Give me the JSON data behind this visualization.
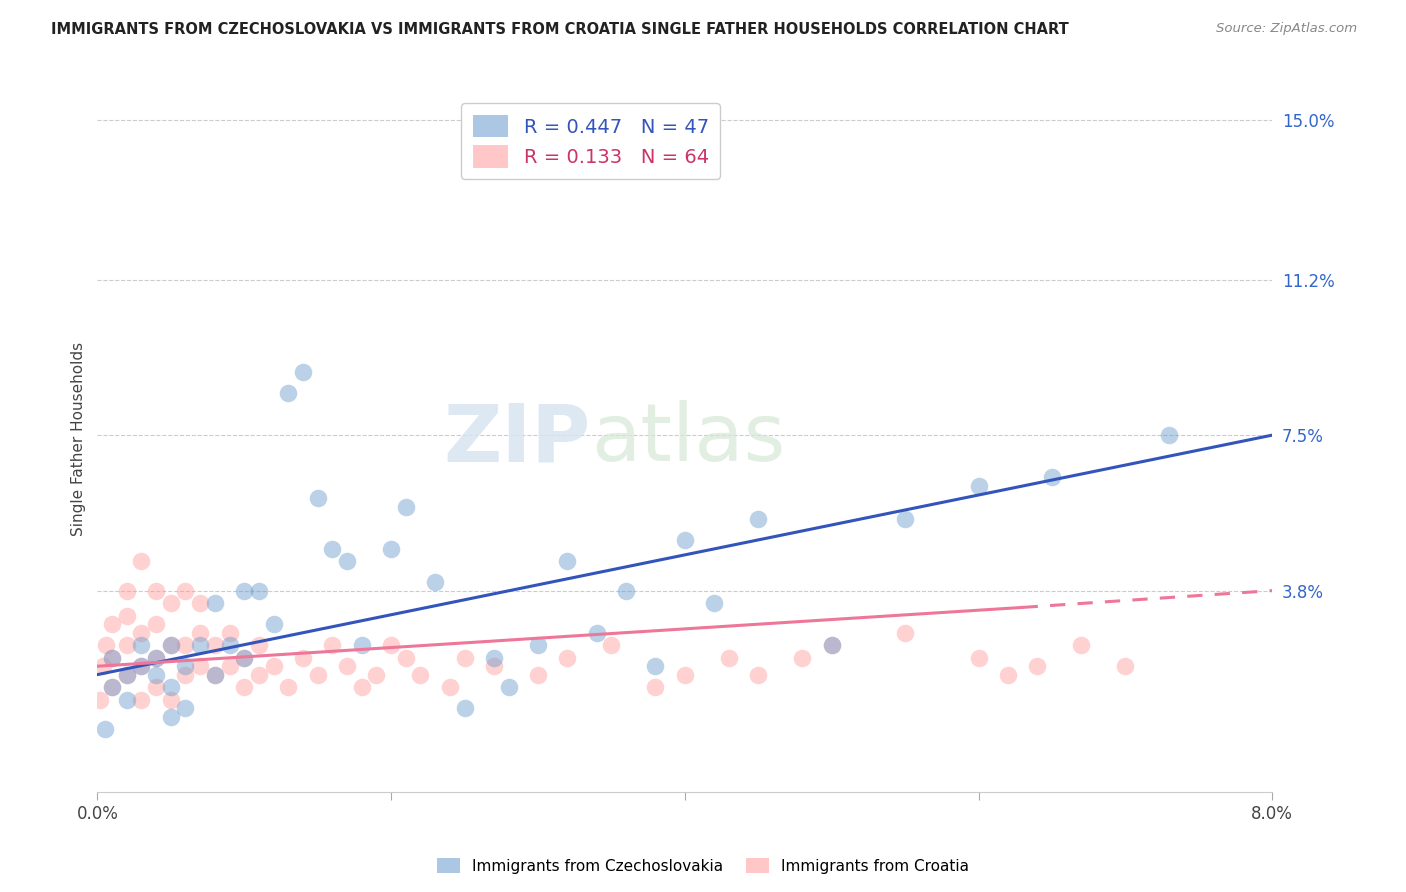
{
  "title": "IMMIGRANTS FROM CZECHOSLOVAKIA VS IMMIGRANTS FROM CROATIA SINGLE FATHER HOUSEHOLDS CORRELATION CHART",
  "source": "Source: ZipAtlas.com",
  "ylabel": "Single Father Households",
  "xlim": [
    0.0,
    0.08
  ],
  "ylim": [
    -0.01,
    0.158
  ],
  "yticks_right": [
    0.038,
    0.075,
    0.112,
    0.15
  ],
  "yticklabels_right": [
    "3.8%",
    "7.5%",
    "11.2%",
    "15.0%"
  ],
  "r_czech": 0.447,
  "n_czech": 47,
  "r_croatia": 0.133,
  "n_croatia": 64,
  "color_czech": "#6699CC",
  "color_croatia": "#FF9999",
  "trend_czech_color": "#3355BB",
  "trend_croatia_color": "#EE7799",
  "legend_label_czech": "Immigrants from Czechoslovakia",
  "legend_label_croatia": "Immigrants from Croatia",
  "czech_x": [
    0.0005,
    0.001,
    0.001,
    0.002,
    0.002,
    0.003,
    0.003,
    0.004,
    0.004,
    0.005,
    0.005,
    0.005,
    0.006,
    0.006,
    0.007,
    0.008,
    0.008,
    0.009,
    0.01,
    0.01,
    0.011,
    0.012,
    0.013,
    0.014,
    0.015,
    0.016,
    0.017,
    0.018,
    0.02,
    0.021,
    0.023,
    0.025,
    0.027,
    0.028,
    0.03,
    0.032,
    0.034,
    0.036,
    0.038,
    0.04,
    0.042,
    0.045,
    0.05,
    0.055,
    0.06,
    0.065,
    0.073
  ],
  "czech_y": [
    0.005,
    0.015,
    0.022,
    0.018,
    0.012,
    0.02,
    0.025,
    0.022,
    0.018,
    0.008,
    0.015,
    0.025,
    0.01,
    0.02,
    0.025,
    0.018,
    0.035,
    0.025,
    0.022,
    0.038,
    0.038,
    0.03,
    0.085,
    0.09,
    0.06,
    0.048,
    0.045,
    0.025,
    0.048,
    0.058,
    0.04,
    0.01,
    0.022,
    0.015,
    0.025,
    0.045,
    0.028,
    0.038,
    0.02,
    0.05,
    0.035,
    0.055,
    0.025,
    0.055,
    0.063,
    0.065,
    0.075
  ],
  "croatia_x": [
    0.0002,
    0.0004,
    0.0006,
    0.001,
    0.001,
    0.001,
    0.002,
    0.002,
    0.002,
    0.002,
    0.003,
    0.003,
    0.003,
    0.003,
    0.004,
    0.004,
    0.004,
    0.004,
    0.005,
    0.005,
    0.005,
    0.006,
    0.006,
    0.006,
    0.007,
    0.007,
    0.007,
    0.008,
    0.008,
    0.009,
    0.009,
    0.01,
    0.01,
    0.011,
    0.011,
    0.012,
    0.013,
    0.014,
    0.015,
    0.016,
    0.017,
    0.018,
    0.019,
    0.02,
    0.021,
    0.022,
    0.024,
    0.025,
    0.027,
    0.03,
    0.032,
    0.035,
    0.038,
    0.04,
    0.043,
    0.045,
    0.048,
    0.05,
    0.055,
    0.06,
    0.062,
    0.064,
    0.067,
    0.07
  ],
  "croatia_y": [
    0.012,
    0.02,
    0.025,
    0.015,
    0.022,
    0.03,
    0.018,
    0.025,
    0.032,
    0.038,
    0.012,
    0.02,
    0.028,
    0.045,
    0.015,
    0.022,
    0.03,
    0.038,
    0.012,
    0.025,
    0.035,
    0.018,
    0.025,
    0.038,
    0.02,
    0.028,
    0.035,
    0.018,
    0.025,
    0.02,
    0.028,
    0.015,
    0.022,
    0.018,
    0.025,
    0.02,
    0.015,
    0.022,
    0.018,
    0.025,
    0.02,
    0.015,
    0.018,
    0.025,
    0.022,
    0.018,
    0.015,
    0.022,
    0.02,
    0.018,
    0.022,
    0.025,
    0.015,
    0.018,
    0.022,
    0.018,
    0.022,
    0.025,
    0.028,
    0.022,
    0.018,
    0.02,
    0.025,
    0.02
  ],
  "trend_czech_x_start": 0.0,
  "trend_czech_y_start": 0.018,
  "trend_czech_x_end": 0.08,
  "trend_czech_y_end": 0.075,
  "trend_croatia_solid_x_end": 0.063,
  "trend_croatia_y_start": 0.02,
  "trend_croatia_y_end_solid": 0.034,
  "trend_croatia_y_end_dashed": 0.038
}
